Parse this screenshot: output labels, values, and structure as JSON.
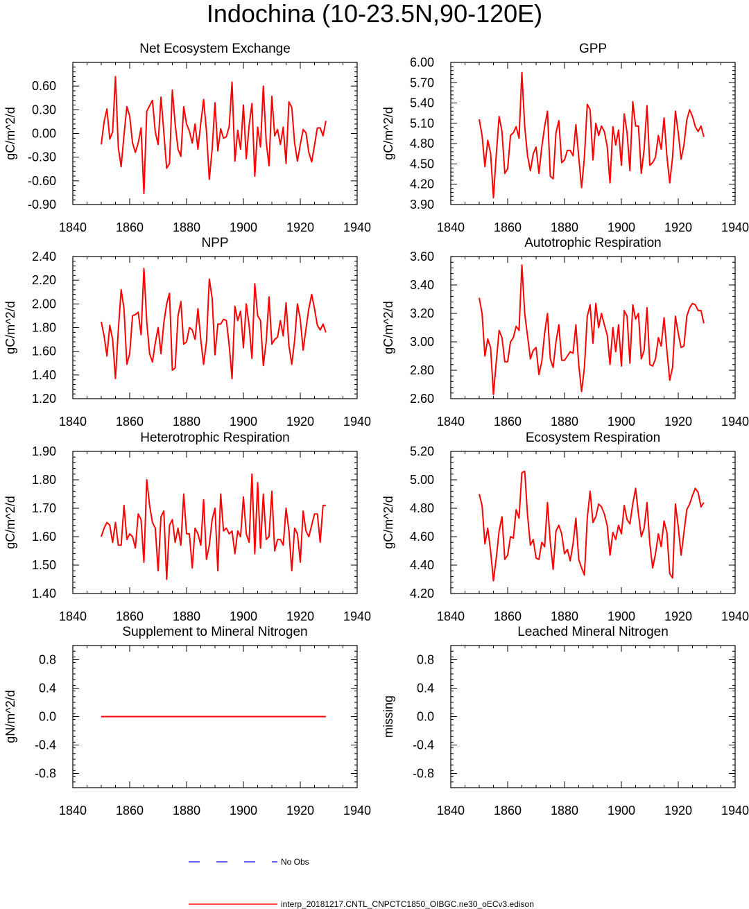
{
  "figure_title": "Indochina (10-23.5N,90-120E)",
  "legend": [
    {
      "label": "No Obs",
      "color": "#0000ff",
      "style": "dashed"
    },
    {
      "label": "interp_20181217.CNTL_CNPCTC1850_OIBGC.ne30_oECv3.edison",
      "color": "#ff0000",
      "style": "solid"
    }
  ],
  "chart_data": [
    {
      "type": "line",
      "title": "Net Ecosystem Exchange",
      "ylabel": "gC/m^2/d",
      "xlim": [
        1840,
        1940
      ],
      "ylim": [
        -0.9,
        0.9
      ],
      "xticks": [
        1840,
        1860,
        1880,
        1900,
        1920,
        1940
      ],
      "yticks": [
        -0.9,
        -0.6,
        -0.3,
        0.0,
        0.3,
        0.6
      ],
      "ytick_labels": [
        "-0.90",
        "-0.60",
        "-0.30",
        "0.00",
        "0.30",
        "0.60"
      ],
      "series": [
        {
          "name": "interp_20181217.CNTL_CNPCTC1850_OIBGC.ne30_oECv3.edison",
          "color": "#ff0000",
          "x_start": 1850,
          "x_step": 1,
          "values": [
            -0.14,
            0.15,
            0.31,
            -0.07,
            0.02,
            0.72,
            -0.18,
            -0.42,
            -0.02,
            0.34,
            0.22,
            -0.12,
            -0.24,
            -0.12,
            0.07,
            -0.76,
            0.28,
            0.35,
            0.42,
            0.02,
            -0.14,
            0.46,
            0.02,
            -0.44,
            -0.38,
            0.55,
            0.12,
            -0.2,
            -0.29,
            0.34,
            0.12,
            0.03,
            -0.12,
            0.12,
            -0.2,
            0.13,
            0.43,
            0.03,
            -0.58,
            -0.2,
            0.39,
            -0.22,
            0.06,
            -0.06,
            -0.04,
            0.09,
            0.65,
            -0.35,
            0.04,
            -0.2,
            0.36,
            -0.32,
            0.1,
            0.38,
            -0.54,
            0.08,
            -0.17,
            0.6,
            -0.1,
            -0.41,
            0.47,
            -0.03,
            0.05,
            -0.14,
            0.08,
            -0.38,
            0.4,
            0.33,
            -0.12,
            -0.35,
            -0.14,
            0.05,
            0.01,
            -0.24,
            -0.36,
            -0.15,
            0.07,
            0.07,
            -0.03,
            0.16
          ]
        }
      ]
    },
    {
      "type": "line",
      "title": "GPP",
      "ylabel": "gC/m^2/d",
      "xlim": [
        1840,
        1940
      ],
      "ylim": [
        3.9,
        6.0
      ],
      "xticks": [
        1840,
        1860,
        1880,
        1900,
        1920,
        1940
      ],
      "yticks": [
        3.9,
        4.2,
        4.5,
        4.8,
        5.1,
        5.4,
        5.7,
        6.0
      ],
      "ytick_labels": [
        "3.90",
        "4.20",
        "4.50",
        "4.80",
        "5.10",
        "5.40",
        "5.70",
        "6.00"
      ],
      "series": [
        {
          "name": "interp_20181217.CNTL_CNPCTC1850_OIBGC.ne30_oECv3.edison",
          "color": "#ff0000",
          "x_start": 1850,
          "x_step": 1,
          "values": [
            5.16,
            4.92,
            4.46,
            4.85,
            4.66,
            4.0,
            4.64,
            5.2,
            4.98,
            4.36,
            4.43,
            4.92,
            4.96,
            5.05,
            4.88,
            5.85,
            5.05,
            4.62,
            4.4,
            4.65,
            4.75,
            4.36,
            4.75,
            5.05,
            5.28,
            4.32,
            4.28,
            4.96,
            5.14,
            4.52,
            4.56,
            4.7,
            4.7,
            4.62,
            5.08,
            4.6,
            4.15,
            4.6,
            5.38,
            5.3,
            4.56,
            5.1,
            4.92,
            5.06,
            4.98,
            4.76,
            4.22,
            5.05,
            4.78,
            5.0,
            4.48,
            5.24,
            4.96,
            4.4,
            5.42,
            5.06,
            5.06,
            4.36,
            4.72,
            5.36,
            4.48,
            4.52,
            4.6,
            4.92,
            4.72,
            5.18,
            4.62,
            4.22,
            4.6,
            5.28,
            4.96,
            4.57,
            4.78,
            5.15,
            5.3,
            5.2,
            5.05,
            4.98,
            5.06,
            4.9
          ]
        }
      ]
    },
    {
      "type": "line",
      "title": "NPP",
      "ylabel": "gC/m^2/d",
      "xlim": [
        1840,
        1940
      ],
      "ylim": [
        1.2,
        2.4
      ],
      "xticks": [
        1840,
        1860,
        1880,
        1900,
        1920,
        1940
      ],
      "yticks": [
        1.2,
        1.4,
        1.6,
        1.8,
        2.0,
        2.2,
        2.4
      ],
      "ytick_labels": [
        "1.20",
        "1.40",
        "1.60",
        "1.80",
        "2.00",
        "2.20",
        "2.40"
      ],
      "series": [
        {
          "name": "interp_20181217.CNTL_CNPCTC1850_OIBGC.ne30_oECv3.edison",
          "color": "#ff0000",
          "x_start": 1850,
          "x_step": 1,
          "values": [
            1.85,
            1.73,
            1.56,
            1.82,
            1.7,
            1.37,
            1.78,
            2.12,
            1.96,
            1.49,
            1.58,
            1.9,
            1.91,
            1.93,
            1.74,
            2.3,
            1.85,
            1.58,
            1.51,
            1.67,
            1.8,
            1.58,
            1.84,
            2.0,
            2.09,
            1.44,
            1.46,
            1.9,
            2.02,
            1.66,
            1.68,
            1.8,
            1.78,
            1.7,
            1.96,
            1.7,
            1.49,
            1.68,
            2.21,
            2.05,
            1.57,
            1.83,
            1.83,
            1.87,
            1.86,
            1.65,
            1.37,
            1.98,
            1.86,
            1.94,
            1.63,
            2.0,
            1.82,
            1.54,
            2.17,
            1.9,
            1.86,
            1.48,
            1.68,
            2.06,
            1.66,
            1.7,
            1.72,
            1.86,
            1.73,
            2.01,
            1.65,
            1.49,
            1.69,
            2.0,
            1.87,
            1.61,
            1.79,
            1.96,
            2.08,
            1.96,
            1.82,
            1.78,
            1.83,
            1.76
          ]
        }
      ]
    },
    {
      "type": "line",
      "title": "Autotrophic Respiration",
      "ylabel": "gC/m^2/d",
      "xlim": [
        1840,
        1940
      ],
      "ylim": [
        2.6,
        3.6
      ],
      "xticks": [
        1840,
        1860,
        1880,
        1900,
        1920,
        1940
      ],
      "yticks": [
        2.6,
        2.8,
        3.0,
        3.2,
        3.4,
        3.6
      ],
      "ytick_labels": [
        "2.60",
        "2.80",
        "3.00",
        "3.20",
        "3.40",
        "3.60"
      ],
      "series": [
        {
          "name": "interp_20181217.CNTL_CNPCTC1850_OIBGC.ne30_oECv3.edison",
          "color": "#ff0000",
          "x_start": 1850,
          "x_step": 1,
          "values": [
            3.31,
            3.2,
            2.9,
            3.02,
            2.96,
            2.63,
            2.86,
            3.08,
            3.03,
            2.86,
            2.86,
            3.0,
            3.03,
            3.11,
            3.08,
            3.54,
            3.2,
            3.04,
            2.88,
            2.94,
            2.96,
            2.77,
            2.86,
            3.06,
            3.2,
            2.88,
            2.82,
            3.0,
            3.12,
            2.87,
            2.87,
            2.9,
            2.93,
            2.92,
            3.12,
            2.84,
            2.65,
            2.82,
            3.18,
            3.26,
            2.99,
            3.27,
            3.1,
            3.2,
            3.12,
            3.05,
            2.84,
            3.1,
            2.93,
            3.12,
            2.83,
            3.22,
            3.18,
            2.85,
            3.26,
            3.16,
            3.2,
            2.88,
            2.94,
            3.24,
            2.84,
            2.83,
            2.88,
            3.03,
            2.97,
            3.17,
            2.94,
            2.73,
            2.82,
            3.18,
            3.06,
            2.96,
            2.97,
            3.18,
            3.24,
            3.27,
            3.26,
            3.22,
            3.22,
            3.13
          ]
        }
      ]
    },
    {
      "type": "line",
      "title": "Heterotrophic Respiration",
      "ylabel": "gC/m^2/d",
      "xlim": [
        1840,
        1940
      ],
      "ylim": [
        1.4,
        1.9
      ],
      "xticks": [
        1840,
        1860,
        1880,
        1900,
        1920,
        1940
      ],
      "yticks": [
        1.4,
        1.5,
        1.6,
        1.7,
        1.8,
        1.9
      ],
      "ytick_labels": [
        "1.40",
        "1.50",
        "1.60",
        "1.70",
        "1.80",
        "1.90"
      ],
      "series": [
        {
          "name": "interp_20181217.CNTL_CNPCTC1850_OIBGC.ne30_oECv3.edison",
          "color": "#ff0000",
          "x_start": 1850,
          "x_step": 1,
          "values": [
            1.6,
            1.63,
            1.65,
            1.64,
            1.58,
            1.65,
            1.57,
            1.57,
            1.71,
            1.59,
            1.61,
            1.6,
            1.56,
            1.68,
            1.66,
            1.51,
            1.8,
            1.71,
            1.65,
            1.63,
            1.48,
            1.67,
            1.69,
            1.45,
            1.64,
            1.66,
            1.58,
            1.63,
            1.57,
            1.75,
            1.61,
            1.61,
            1.49,
            1.63,
            1.61,
            1.57,
            1.73,
            1.52,
            1.57,
            1.66,
            1.7,
            1.48,
            1.75,
            1.62,
            1.63,
            1.61,
            1.62,
            1.54,
            1.62,
            1.6,
            1.74,
            1.61,
            1.58,
            1.82,
            1.54,
            1.79,
            1.56,
            1.75,
            1.59,
            1.6,
            1.76,
            1.55,
            1.59,
            1.59,
            1.57,
            1.7,
            1.62,
            1.48,
            1.63,
            1.61,
            1.51,
            1.69,
            1.62,
            1.6,
            1.64,
            1.68,
            1.68,
            1.58,
            1.71,
            1.71
          ]
        }
      ]
    },
    {
      "type": "line",
      "title": "Ecosystem Respiration",
      "ylabel": "gC/m^2/d",
      "xlim": [
        1840,
        1940
      ],
      "ylim": [
        4.2,
        5.2
      ],
      "xticks": [
        1840,
        1860,
        1880,
        1900,
        1920,
        1940
      ],
      "yticks": [
        4.2,
        4.4,
        4.6,
        4.8,
        5.0,
        5.2
      ],
      "ytick_labels": [
        "4.20",
        "4.40",
        "4.60",
        "4.80",
        "5.00",
        "5.20"
      ],
      "series": [
        {
          "name": "interp_20181217.CNTL_CNPCTC1850_OIBGC.ne30_oECv3.edison",
          "color": "#ff0000",
          "x_start": 1850,
          "x_step": 1,
          "values": [
            4.9,
            4.82,
            4.55,
            4.66,
            4.5,
            4.29,
            4.45,
            4.64,
            4.74,
            4.44,
            4.47,
            4.6,
            4.59,
            4.79,
            4.73,
            5.05,
            5.06,
            4.75,
            4.54,
            4.58,
            4.45,
            4.44,
            4.56,
            4.53,
            4.84,
            4.56,
            4.37,
            4.64,
            4.68,
            4.62,
            4.48,
            4.51,
            4.43,
            4.55,
            4.73,
            4.44,
            4.38,
            4.33,
            4.73,
            4.92,
            4.7,
            4.74,
            4.83,
            4.81,
            4.76,
            4.68,
            4.47,
            4.63,
            4.58,
            4.68,
            4.62,
            4.82,
            4.72,
            4.69,
            4.83,
            4.94,
            4.76,
            4.6,
            4.66,
            4.84,
            4.55,
            4.38,
            4.48,
            4.62,
            4.53,
            4.71,
            4.63,
            4.34,
            4.31,
            4.83,
            4.67,
            4.47,
            4.63,
            4.79,
            4.83,
            4.89,
            4.94,
            4.91,
            4.81,
            4.84
          ]
        }
      ]
    },
    {
      "type": "line",
      "title": "Supplement to Mineral Nitrogen",
      "ylabel": "gN/m^2/d",
      "xlim": [
        1840,
        1940
      ],
      "ylim": [
        -1.0,
        1.0
      ],
      "xticks": [
        1840,
        1860,
        1880,
        1900,
        1920,
        1940
      ],
      "yticks": [
        -0.8,
        -0.4,
        0.0,
        0.4,
        0.8
      ],
      "ytick_labels": [
        "-0.8",
        "-0.4",
        "0.0",
        "0.4",
        "0.8"
      ],
      "series": [
        {
          "name": "interp_20181217.CNTL_CNPCTC1850_OIBGC.ne30_oECv3.edison",
          "color": "#ff0000",
          "x_start": 1850,
          "x_step": 1,
          "values": [
            0,
            0,
            0,
            0,
            0,
            0,
            0,
            0,
            0,
            0,
            0,
            0,
            0,
            0,
            0,
            0,
            0,
            0,
            0,
            0,
            0,
            0,
            0,
            0,
            0,
            0,
            0,
            0,
            0,
            0,
            0,
            0,
            0,
            0,
            0,
            0,
            0,
            0,
            0,
            0,
            0,
            0,
            0,
            0,
            0,
            0,
            0,
            0,
            0,
            0,
            0,
            0,
            0,
            0,
            0,
            0,
            0,
            0,
            0,
            0,
            0,
            0,
            0,
            0,
            0,
            0,
            0,
            0,
            0,
            0,
            0,
            0,
            0,
            0,
            0,
            0,
            0,
            0,
            0,
            0
          ]
        }
      ]
    },
    {
      "type": "line",
      "title": "Leached Mineral Nitrogen",
      "ylabel": "missing",
      "xlim": [
        1840,
        1940
      ],
      "ylim": [
        -1.0,
        1.0
      ],
      "xticks": [
        1840,
        1860,
        1880,
        1900,
        1920,
        1940
      ],
      "yticks": [
        -0.8,
        -0.4,
        0.0,
        0.4,
        0.8
      ],
      "ytick_labels": [
        "-0.8",
        "-0.4",
        "0.0",
        "0.4",
        "0.8"
      ],
      "series": []
    }
  ]
}
